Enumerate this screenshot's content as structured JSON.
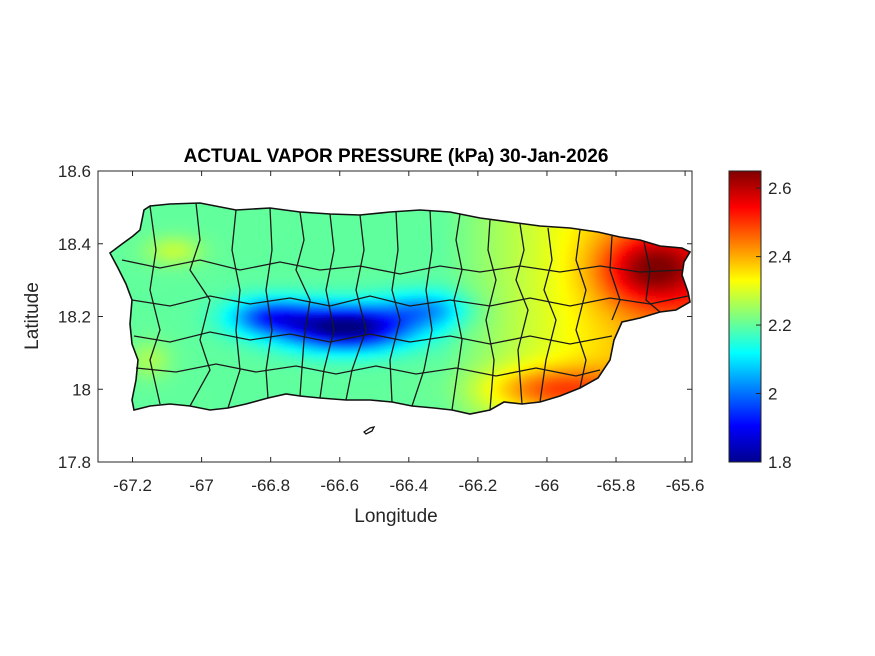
{
  "chart_data": {
    "type": "heatmap",
    "title": "ACTUAL VAPOR PRESSURE (kPa) 30-Jan-2026",
    "xlabel": "Longitude",
    "ylabel": "Latitude",
    "xlim": [
      -67.3,
      -65.58
    ],
    "ylim": [
      17.8,
      18.6
    ],
    "xticks": [
      -67.2,
      -67,
      -66.8,
      -66.6,
      -66.4,
      -66.2,
      -66,
      -65.8,
      -65.6
    ],
    "xtick_labels": [
      "-67.2",
      "-67",
      "-66.8",
      "-66.6",
      "-66.4",
      "-66.2",
      "-66",
      "-65.8",
      "-65.6"
    ],
    "yticks": [
      17.8,
      18,
      18.2,
      18.4,
      18.6
    ],
    "ytick_labels": [
      "17.8",
      "18",
      "18.2",
      "18.4",
      "18.6"
    ],
    "colorbar": {
      "colormap": "jet",
      "range": [
        1.8,
        2.65
      ],
      "ticks": [
        1.8,
        2,
        2.2,
        2.4,
        2.6
      ],
      "tick_labels": [
        "1.8",
        "2",
        "2.2",
        "2.4",
        "2.6"
      ]
    },
    "field_summary": {
      "min_region": "central interior near -66.55, 18.17 (~1.8 kPa)",
      "max_region": "northeast coast near -65.65, 18.35 (~2.6 kPa)",
      "south_east_coast": "~2.45–2.5 kPa",
      "west_and_north": "~2.2–2.35 kPa"
    },
    "grid": false
  }
}
